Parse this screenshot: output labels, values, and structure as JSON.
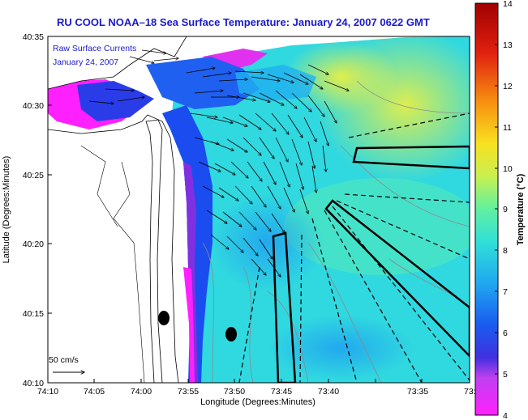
{
  "title": "RU COOL  NOAA–18  Sea Surface Temperature:  January 24, 2007 0622 GMT",
  "overlay": {
    "line1": "Raw Surface Currents",
    "line2": "January 24, 2007"
  },
  "axes": {
    "xlabel": "Longitude (Degrees:Minutes)",
    "ylabel": "Latitude (Degrees:Minutes)",
    "x_ticks": [
      "74:10",
      "74:05",
      "74:00",
      "73:55",
      "73:50",
      "73:45",
      "73:40",
      "73:35",
      "73:3"
    ],
    "y_ticks": [
      "40:35",
      "40:30",
      "40:25",
      "40:20",
      "40:15",
      "40:10"
    ]
  },
  "colorbar": {
    "label": "Temperature (°C)",
    "ticks": [
      "14",
      "13",
      "12",
      "11",
      "10",
      "9",
      "8",
      "7",
      "6",
      "5",
      "4"
    ],
    "min": 4,
    "max": 14,
    "colors": [
      "#ff20ff",
      "#c040f0",
      "#4030e0",
      "#1a5cf0",
      "#20a8f0",
      "#30e0d8",
      "#60f0a0",
      "#c8f050",
      "#f8e020",
      "#f89010",
      "#e02010",
      "#a00000"
    ]
  },
  "scale_bar": {
    "label": "50 cm/s"
  }
}
